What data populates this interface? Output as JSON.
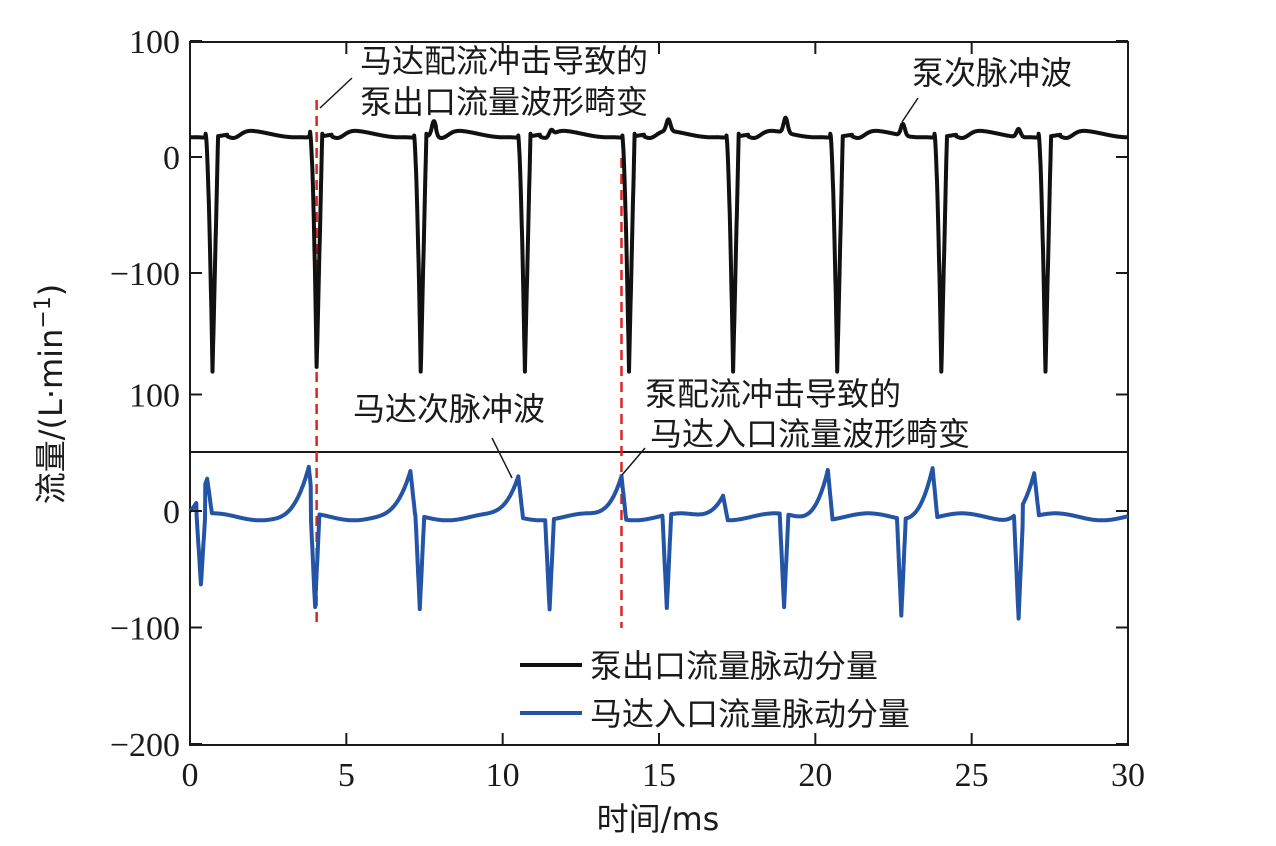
{
  "chart_data": {
    "type": "line",
    "x_axis": {
      "label": "时间/ms",
      "range": [
        0,
        30
      ],
      "ticks": [
        0,
        5,
        10,
        15,
        20,
        25,
        30
      ],
      "tick_labels": [
        "0",
        "5",
        "10",
        "15",
        "20",
        "25",
        "30"
      ]
    },
    "y_axis": {
      "label": "流量/(L·min",
      "label_superscript": "−1",
      "label_suffix": ")"
    },
    "panels": [
      {
        "name": "upper",
        "ylim": [
          -200,
          100
        ],
        "ticks": [
          100,
          0,
          -100
        ],
        "tick_labels": [
          "100",
          "0",
          "−100"
        ]
      },
      {
        "name": "lower",
        "ylim": [
          -200,
          100
        ],
        "ticks": [
          100,
          0,
          -100,
          -200
        ],
        "tick_labels": [
          "100",
          "0",
          "−100",
          "−200"
        ]
      }
    ],
    "series": [
      {
        "name": "泵出口流量脉动分量",
        "color": "#111111",
        "panel": "upper",
        "period": 3.33,
        "phase": 0.5,
        "plateau": 20,
        "trough": -185,
        "spike_times": [
          3.95,
          7.8,
          11.55,
          15.3,
          19.05,
          22.8,
          26.5
        ],
        "spike_heights": [
          14,
          12,
          5,
          10,
          13,
          10,
          7
        ]
      },
      {
        "name": "马达入口流量脉动分量",
        "color": "#2454a6",
        "panel": "lower",
        "period": 3.76,
        "trough_phase": 0.45,
        "baseline": -5,
        "peak_times": [
          0.55,
          3.8,
          7.05,
          10.5,
          13.8,
          17.05,
          20.4,
          23.75,
          27.0
        ],
        "peak_values": [
          25,
          35,
          32,
          30,
          32,
          16,
          38,
          38,
          32
        ],
        "trough_times": [
          0.35,
          4.0,
          7.35,
          11.5,
          15.25,
          19.0,
          22.75,
          26.5
        ],
        "trough_values": [
          -65,
          -85,
          -85,
          -82,
          -85,
          -85,
          -88,
          -90
        ]
      }
    ],
    "legend": {
      "placement": "bottom-right",
      "entries": [
        "泵出口流量脉动分量",
        "马达入口流量脉动分量"
      ]
    },
    "annotations": [
      {
        "lines": [
          "马达配流冲击导致的",
          "泵出口流量波形畸变"
        ]
      },
      {
        "lines": [
          "泵次脉冲波"
        ]
      },
      {
        "lines": [
          "马达次脉冲波"
        ]
      },
      {
        "lines": [
          "泵配流冲击导致的",
          "马达入口流量波形畸变"
        ]
      }
    ],
    "reference_lines": [
      {
        "x": 4.05,
        "color": "#e0241e",
        "style": "dashed"
      },
      {
        "x": 13.8,
        "color": "#e0241e",
        "style": "dashed"
      }
    ]
  }
}
